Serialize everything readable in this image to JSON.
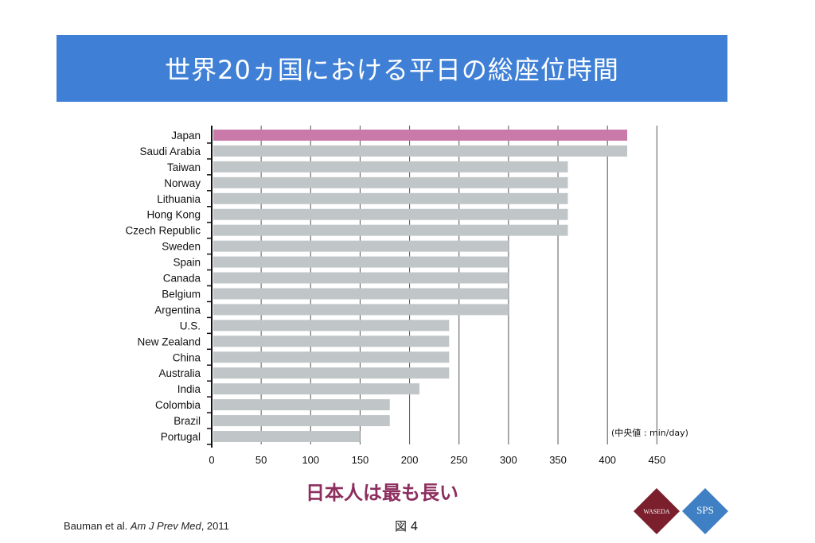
{
  "slide": {
    "title": "世界20ヵ国における平日の総座位時間",
    "conclusion": "日本人は最も長い",
    "citation_authors": "Bauman et al. ",
    "citation_journal": "Am J Prev Med",
    "citation_year": ", 2011",
    "figure_label": "図 4",
    "title_bg_color": "#3f80d6",
    "conclusion_color": "#8c2e5e"
  },
  "logos": {
    "left_text": "WASEDA",
    "left_color": "#7a1f2b",
    "right_text": "SPS",
    "right_color": "#3f7fc4"
  },
  "chart_data": {
    "type": "bar",
    "orientation": "horizontal",
    "categories": [
      "Japan",
      "Saudi Arabia",
      "Taiwan",
      "Norway",
      "Lithuania",
      "Hong Kong",
      "Czech Republic",
      "Sweden",
      "Spain",
      "Canada",
      "Belgium",
      "Argentina",
      "U.S.",
      "New Zealand",
      "China",
      "Australia",
      "India",
      "Colombia",
      "Brazil",
      "Portugal"
    ],
    "values": [
      420,
      420,
      360,
      360,
      360,
      360,
      360,
      300,
      300,
      300,
      300,
      300,
      240,
      240,
      240,
      240,
      210,
      180,
      180,
      150
    ],
    "xlim": [
      0,
      450
    ],
    "xticks": [
      0,
      50,
      100,
      150,
      200,
      250,
      300,
      350,
      400,
      450
    ],
    "grid": true,
    "unit_note": "(中央値 : min/day)",
    "highlight_category": "Japan",
    "bar_color": "#c0c5c7",
    "highlight_color": "#c97aa8"
  }
}
